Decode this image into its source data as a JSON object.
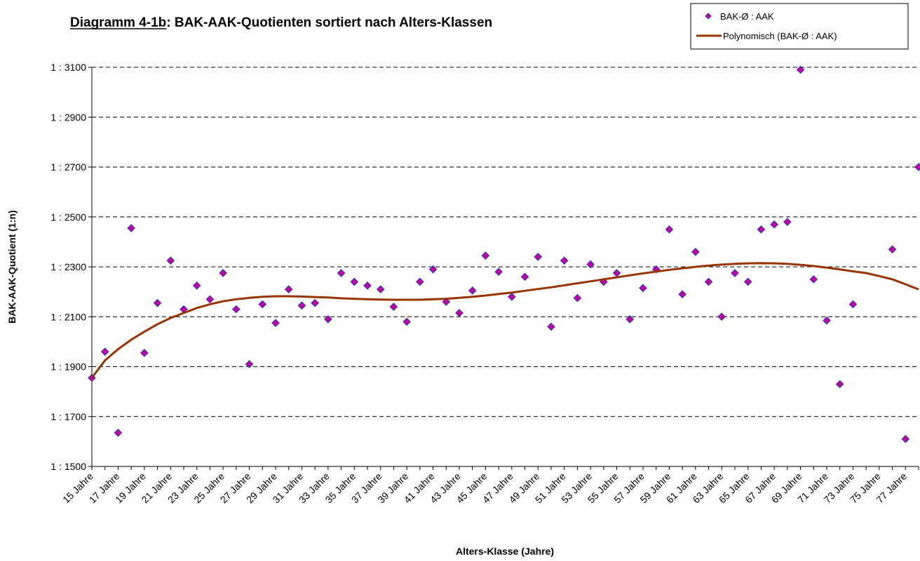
{
  "chart_data": {
    "type": "scatter",
    "title": "Diagramm 4-1b: BAK-AAK-Quotienten sortiert nach Alters-Klassen",
    "x_label": "Alters-Klasse (Jahre)",
    "y_label": "BAK-AAK-Quotient (1:n)",
    "categories": [
      "15 Jahre",
      null,
      "17 Jahre",
      null,
      "19 Jahre",
      null,
      "21 Jahre",
      null,
      "23 Jahre",
      null,
      "25 Jahre",
      null,
      "27 Jahre",
      null,
      "29 Jahre",
      null,
      "31 Jahre",
      null,
      "33 Jahre",
      null,
      "35 Jahre",
      null,
      "37 Jahre",
      null,
      "39 Jahre",
      null,
      "41 Jahre",
      null,
      "43 Jahre",
      null,
      "45 Jahre",
      null,
      "47 Jahre",
      null,
      "49 Jahre",
      null,
      "51 Jahre",
      null,
      "53 Jahre",
      null,
      "55 Jahre",
      null,
      "57 Jahre",
      null,
      "59 Jahre",
      null,
      "61 Jahre",
      null,
      "63 Jahre",
      null,
      "65 Jahre",
      null,
      "67 Jahre",
      null,
      "69 Jahre",
      null,
      "71 Jahre",
      null,
      "73 Jahre",
      null,
      "75 Jahre",
      null,
      "77 Jahre",
      null
    ],
    "series": [
      {
        "name": "BAK-Ø : AAK",
        "kind": "markers",
        "color": "#cc0099",
        "edge_color": "#3333cc",
        "values": [
          1855,
          1960,
          1635,
          2455,
          1955,
          2155,
          2325,
          2130,
          2225,
          2170,
          2275,
          2130,
          1910,
          2150,
          2075,
          2210,
          2145,
          2155,
          2090,
          2275,
          2240,
          2225,
          2210,
          2140,
          2080,
          2240,
          2290,
          2160,
          2115,
          2205,
          2345,
          2280,
          2180,
          2260,
          2340,
          2060,
          2325,
          2175,
          2310,
          2240,
          2275,
          2090,
          2215,
          2290,
          2450,
          2190,
          2360,
          2240,
          2100,
          2275,
          2240,
          2450,
          2470,
          2480,
          3090,
          2250,
          2085,
          1830,
          2150,
          null,
          null,
          2370,
          1610,
          2700
        ]
      },
      {
        "name": "Polynomisch (BAK-Ø : AAK)",
        "kind": "line",
        "color": "#993300",
        "values": [
          1855,
          1925,
          1970,
          2008,
          2040,
          2070,
          2095,
          2115,
          2135,
          2150,
          2162,
          2170,
          2176,
          2180,
          2182,
          2182,
          2181,
          2179,
          2177,
          2174,
          2172,
          2170,
          2169,
          2168,
          2168,
          2168,
          2170,
          2172,
          2176,
          2180,
          2185,
          2191,
          2197,
          2204,
          2211,
          2218,
          2226,
          2234,
          2242,
          2250,
          2258,
          2266,
          2274,
          2281,
          2288,
          2294,
          2300,
          2305,
          2309,
          2312,
          2314,
          2315,
          2314,
          2312,
          2308,
          2303,
          2297,
          2290,
          2282,
          2275,
          2263,
          2250,
          2230,
          2210
        ]
      }
    ],
    "ylim": [
      1500,
      3100
    ],
    "yticks": [
      {
        "value": 1500,
        "label": "1 : 1500"
      },
      {
        "value": 1700,
        "label": "1 : 1700"
      },
      {
        "value": 1900,
        "label": "1 : 1900"
      },
      {
        "value": 2100,
        "label": "1 : 2100"
      },
      {
        "value": 2300,
        "label": "1 : 2300"
      },
      {
        "value": 2500,
        "label": "1 : 2500"
      },
      {
        "value": 2700,
        "label": "1 : 2700"
      },
      {
        "value": 2900,
        "label": "1 : 2900"
      },
      {
        "value": 3100,
        "label": "1 : 3100"
      }
    ],
    "grid": true,
    "legend": "top-right"
  }
}
